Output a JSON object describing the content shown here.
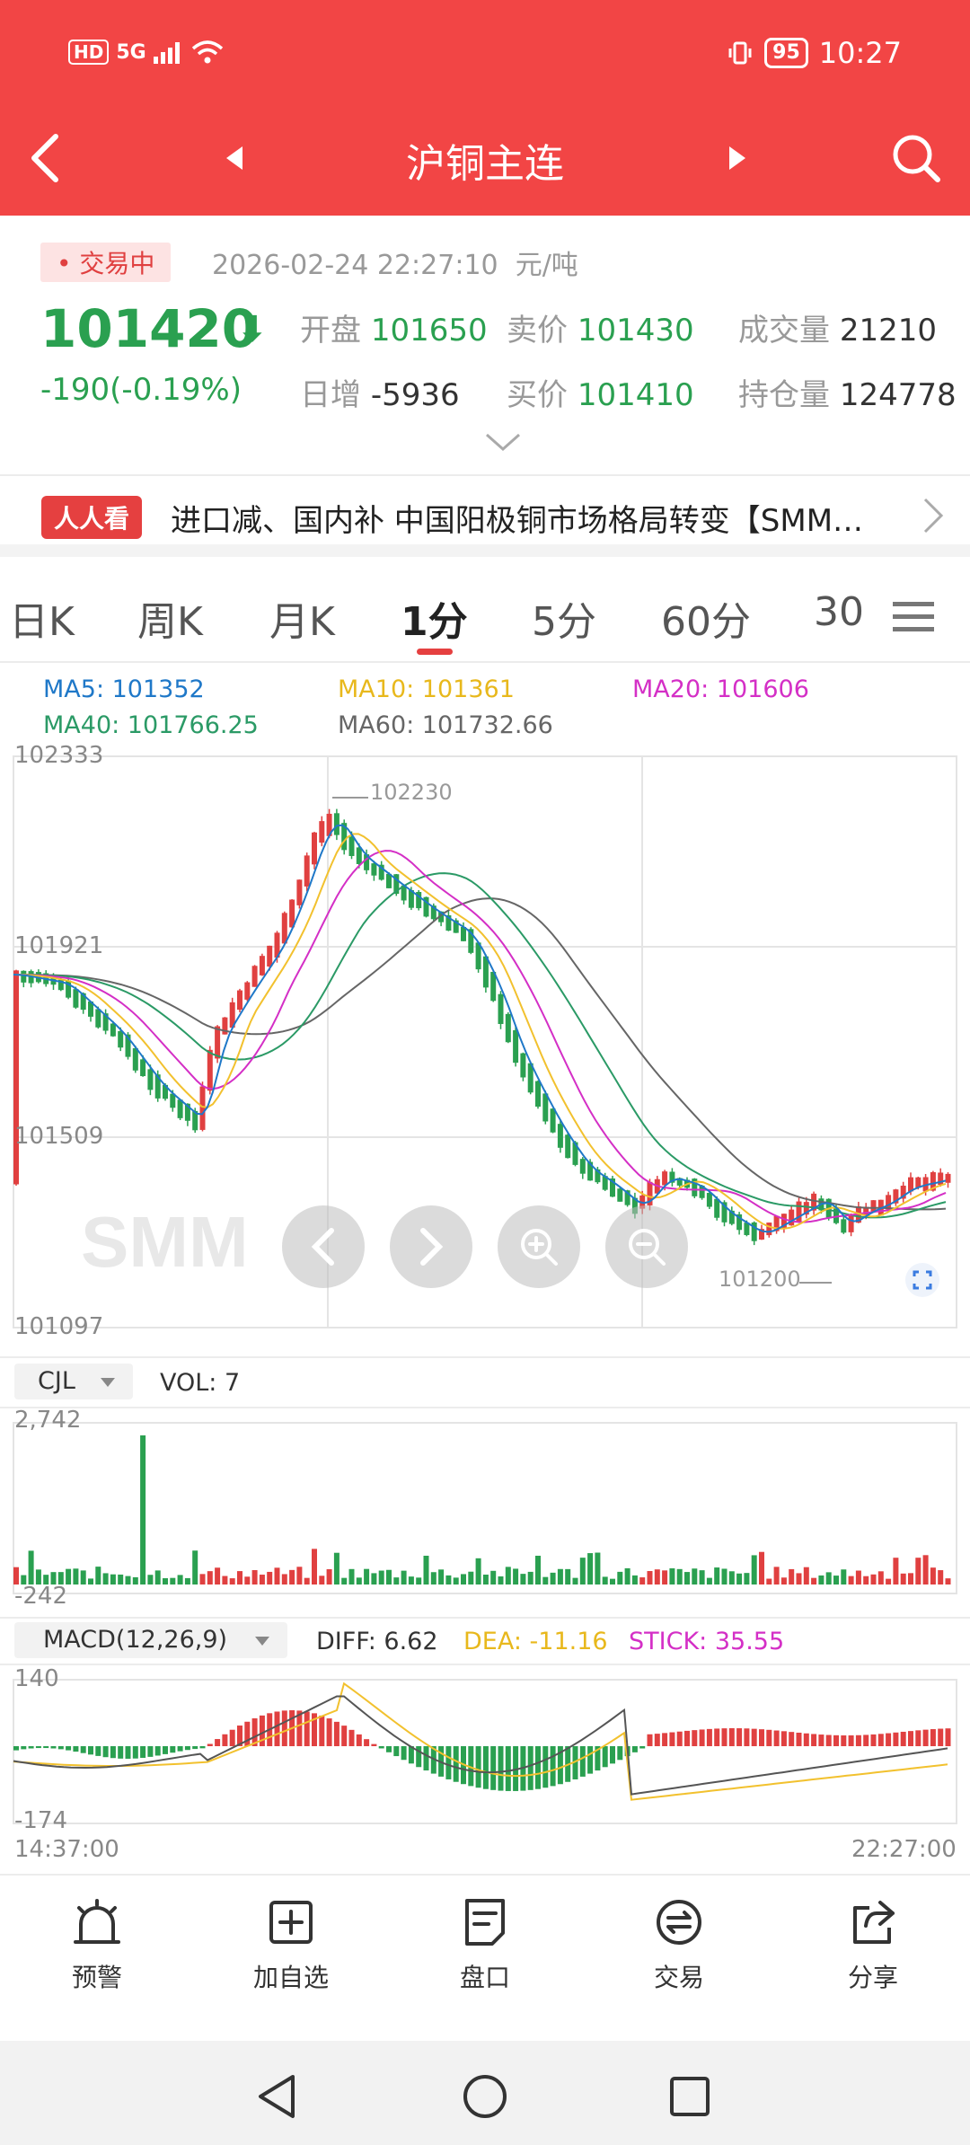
{
  "status_bar": {
    "hd": "HD",
    "net": "5G",
    "battery": "95",
    "time": "10:27"
  },
  "nav": {
    "title": "沪铜主连"
  },
  "quote": {
    "badge": "• 交易中",
    "time": "2026-02-24 22:27:10",
    "unit": "元/吨",
    "price": "101420",
    "change": "-190(-0.19%)",
    "open_label": "开盘",
    "open": "101650",
    "sell_label": "卖价",
    "sell": "101430",
    "volume_label": "成交量",
    "volume": "21210",
    "daily_label": "日增",
    "daily": "-5936",
    "buy_label": "买价",
    "buy": "101410",
    "oi_label": "持仓量",
    "oi": "124778"
  },
  "news": {
    "tag": "人人看",
    "text": "进口减、国内补 中国阳极铜市场格局转变【SMM…"
  },
  "tabs": [
    "日K",
    "周K",
    "月K",
    "1分",
    "5分",
    "60分",
    "30"
  ],
  "active_tab": "1分",
  "ma": {
    "ma5": "MA5: 101352",
    "ma10": "MA10: 101361",
    "ma20": "MA20: 101606",
    "ma40": "MA40: 101766.25",
    "ma60": "MA60: 101732.66"
  },
  "colors": {
    "ma5": "#1f78c8",
    "ma10": "#f2c12e",
    "ma20": "#d42fc6",
    "ma40": "#2b9a66",
    "ma60": "#666666",
    "up": "#e04040",
    "down": "#2aa050",
    "brand": "#f24545"
  },
  "price_axis": [
    "102333",
    "101921",
    "101509",
    "101097"
  ],
  "high_label": "102230",
  "low_label": "101200",
  "vol": {
    "selector": "CJL",
    "value": "VOL: 7",
    "axis_top": "2,742",
    "axis_bottom": "-242"
  },
  "macd": {
    "selector": "MACD(12,26,9)",
    "diff": "DIFF: 6.62",
    "dea": "DEA: -11.16",
    "stick": "STICK: 35.55",
    "axis_top": "140",
    "axis_bottom": "-174"
  },
  "time_axis": {
    "start": "14:37:00",
    "end": "22:27:00"
  },
  "watermark": "SMM",
  "bottom_nav": [
    {
      "label": "预警",
      "icon": "alarm-icon"
    },
    {
      "label": "加自选",
      "icon": "add-watchlist-icon"
    },
    {
      "label": "盘口",
      "icon": "orderbook-icon"
    },
    {
      "label": "交易",
      "icon": "trade-icon"
    },
    {
      "label": "分享",
      "icon": "share-icon"
    }
  ]
}
